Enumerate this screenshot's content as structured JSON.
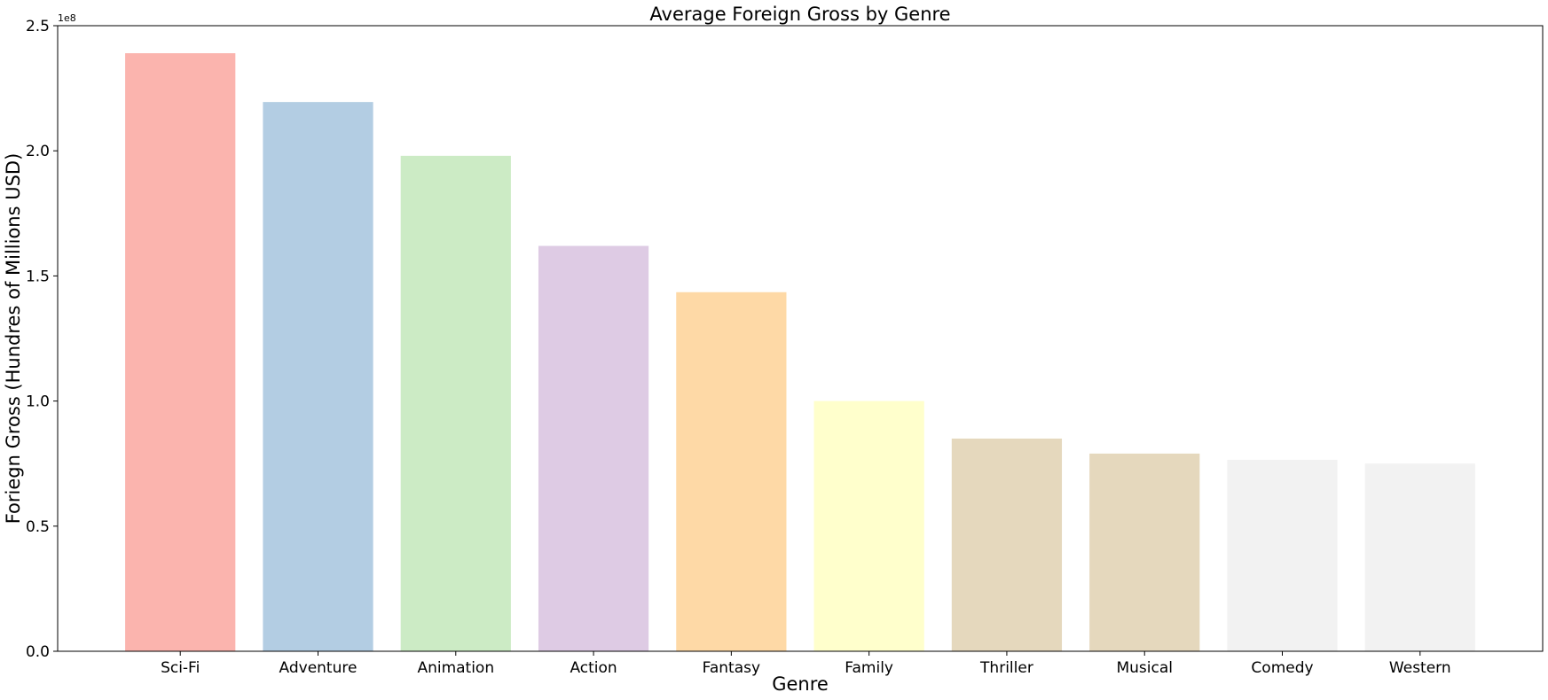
{
  "chart_data": {
    "type": "bar",
    "title": "Average Foreign Gross by Genre",
    "xlabel": "Genre",
    "ylabel": "Foriegn Gross (Hundres of Millions USD)",
    "y_offset_label": "1e8",
    "categories": [
      "Sci-Fi",
      "Adventure",
      "Animation",
      "Action",
      "Fantasy",
      "Family",
      "Thriller",
      "Musical",
      "Comedy",
      "Western"
    ],
    "values": [
      239000000,
      219500000,
      198000000,
      162000000,
      143500000,
      100000000,
      85000000,
      79000000,
      76500000,
      75000000
    ],
    "colors": [
      "#fbb4ae",
      "#b3cde3",
      "#ccebc5",
      "#decbe4",
      "#fed9a6",
      "#ffffcc",
      "#e5d8bd",
      "#e5d8bd",
      "#f2f2f2",
      "#f2f2f2"
    ],
    "ylim": [
      0,
      250000000
    ],
    "y_ticks": [
      0,
      50000000,
      100000000,
      150000000,
      200000000,
      250000000
    ],
    "y_tick_labels": [
      "0.0",
      "0.5",
      "1.0",
      "1.5",
      "2.0",
      "2.5"
    ],
    "grid": false,
    "legend": "none"
  }
}
